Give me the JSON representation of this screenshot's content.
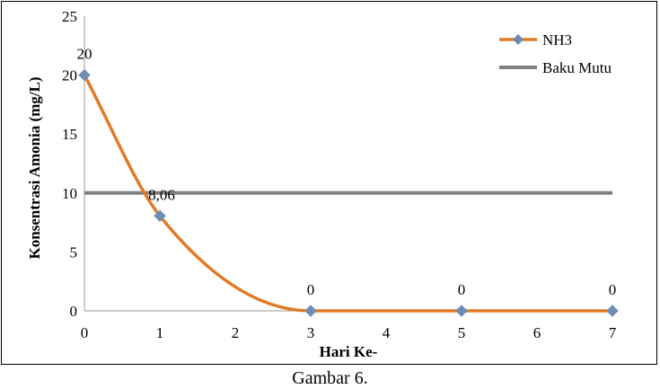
{
  "chart_data": {
    "type": "line",
    "title": "",
    "xlabel": "Hari Ke-",
    "ylabel": "Konsentrasi  Amonia (mg/L)",
    "x": [
      0,
      1,
      3,
      5,
      7
    ],
    "x_tick_labels": [
      "0",
      "1",
      "2",
      "3",
      "4",
      "5",
      "6",
      "7"
    ],
    "y_ticks": [
      0,
      5,
      10,
      15,
      20,
      25
    ],
    "ylim": [
      0,
      25
    ],
    "grid": false,
    "legend_position": "top-right",
    "series": [
      {
        "name": "NH3",
        "values": [
          20,
          8.06,
          0,
          0,
          0
        ],
        "data_labels": [
          "20",
          "8,06",
          "0",
          "0",
          "0"
        ],
        "color": "#E07A26",
        "marker_color": "#6E8CB4",
        "marker": "diamond"
      },
      {
        "name": "Baku Mutu",
        "values": [
          10,
          10,
          10,
          10,
          10
        ],
        "color": "#808080"
      }
    ]
  },
  "caption": "Gambar 6."
}
